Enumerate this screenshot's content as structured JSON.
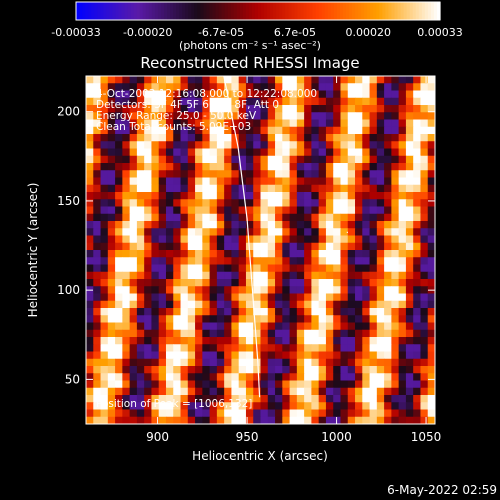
{
  "chart_data": {
    "type": "heatmap",
    "title": "Reconstructed RHESSI Image",
    "xlabel": "Heliocentric X (arcsec)",
    "ylabel": "Heliocentric Y (arcsec)",
    "xlim": [
      860,
      1055
    ],
    "ylim": [
      25,
      220
    ],
    "xticks": [
      900,
      950,
      1000,
      1050
    ],
    "yticks": [
      50,
      100,
      150,
      200
    ],
    "colorbar": {
      "range": [
        -0.00033,
        0.00033
      ],
      "tick_labels": [
        "-0.00033",
        "-0.00020",
        "-6.7e-05",
        "6.7e-05",
        "0.00020",
        "0.00033"
      ],
      "units_label": "(photons cm⁻² s⁻¹ asec⁻²)",
      "colormap": [
        "#0000ff",
        "#5a1aa8",
        "#1a0a1a",
        "#b00000",
        "#ff4000",
        "#ff9f00",
        "#ffffff"
      ]
    },
    "annotations": {
      "time": "4-Oct-2003 12:16:08.000 to 12:22:08.000",
      "detectors": "Detectors: 3F 4F 5F 6F 7F 8F, Att 0",
      "energy": "Energy Range: 25.0 - 50.0 keV",
      "clean": "Clean     Total counts: 5.09E+03",
      "peak": "Position of Peak = [1006,132]"
    },
    "peak": [
      1006,
      132
    ],
    "limb_curve": [
      [
        937,
        220
      ],
      [
        945,
        180
      ],
      [
        950,
        140
      ],
      [
        953,
        100
      ],
      [
        956,
        60
      ],
      [
        957,
        40
      ]
    ]
  },
  "footer": {
    "date": "6-May-2022 02:59"
  }
}
